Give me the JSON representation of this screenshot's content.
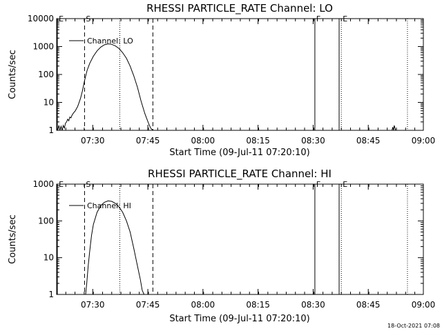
{
  "footer": {
    "date_stamp": "18-Oct-2021 07:08"
  },
  "chart_data": [
    {
      "type": "line",
      "title": "RHESSI PARTICLE_RATE Channel: LO",
      "xlabel": "Start Time (09-Jul-11 07:20:10)",
      "ylabel": "Counts/sec",
      "yscale": "log",
      "ylim": [
        1,
        10000
      ],
      "xlim_minutes": [
        0,
        99.83
      ],
      "x_ticks": [
        "07:30",
        "07:45",
        "08:00",
        "08:15",
        "08:30",
        "08:45",
        "09:00"
      ],
      "y_ticks": [
        "1",
        "10",
        "100",
        "1000",
        "10000"
      ],
      "legend": {
        "label": "Channel: LO",
        "placement": "top-left"
      },
      "markers": [
        {
          "label": "E",
          "minutes": 0.2,
          "style": "solid"
        },
        {
          "label": "S",
          "minutes": 7.6,
          "style": "dashed"
        },
        {
          "minutes": 17.2,
          "style": "dotted"
        },
        {
          "minutes": 26.2,
          "style": "dashed"
        },
        {
          "label": "F",
          "minutes": 70.3,
          "style": "solid"
        },
        {
          "minutes": 76.9,
          "style": "solid"
        },
        {
          "label": "E",
          "minutes": 77.5,
          "style": "dotted"
        },
        {
          "minutes": 95.5,
          "style": "dotted"
        }
      ],
      "series": [
        {
          "name": "Channel: LO",
          "x": [
            0.3,
            0.6,
            0.9,
            1.2,
            1.5,
            1.8,
            2.1,
            2.4,
            2.7,
            3.0,
            3.3,
            3.6,
            3.9,
            4.2,
            4.5,
            4.8,
            5.1,
            5.4,
            5.7,
            6.0,
            6.5,
            7.0,
            7.6,
            8.3,
            9.0,
            10,
            11,
            12,
            13,
            14,
            15,
            16,
            17,
            18,
            19,
            20,
            21,
            22,
            23,
            24,
            25,
            25.6,
            26.2
          ],
          "y": [
            1,
            1.5,
            1,
            1.4,
            1,
            1.5,
            1.2,
            1.8,
            2,
            2.5,
            2.2,
            3,
            2.8,
            3.5,
            4,
            4.5,
            5,
            6,
            7,
            9,
            14,
            25,
            60,
            140,
            250,
            450,
            700,
            950,
            1150,
            1250,
            1200,
            1050,
            850,
            600,
            380,
            200,
            90,
            35,
            11,
            4,
            1.8,
            1.2,
            1
          ]
        },
        {
          "x": [
            91.3,
            91.5,
            91.7,
            91.9,
            92.1,
            92.3
          ],
          "y": [
            1,
            1.3,
            1,
            1.5,
            1.2,
            1
          ]
        }
      ]
    },
    {
      "type": "line",
      "title": "RHESSI PARTICLE_RATE Channel: HI",
      "xlabel": "Start Time (09-Jul-11 07:20:10)",
      "ylabel": "Counts/sec",
      "yscale": "log",
      "ylim": [
        1,
        1000
      ],
      "xlim_minutes": [
        0,
        99.83
      ],
      "x_ticks": [
        "07:30",
        "07:45",
        "08:00",
        "08:15",
        "08:30",
        "08:45",
        "09:00"
      ],
      "y_ticks": [
        "1",
        "10",
        "100",
        "1000"
      ],
      "legend": {
        "label": "Channel: HI",
        "placement": "top-left"
      },
      "markers": [
        {
          "label": "E",
          "minutes": 0.2,
          "style": "solid"
        },
        {
          "label": "S",
          "minutes": 7.6,
          "style": "dashed"
        },
        {
          "minutes": 17.2,
          "style": "dotted"
        },
        {
          "minutes": 26.2,
          "style": "dashed"
        },
        {
          "label": "F",
          "minutes": 70.3,
          "style": "solid"
        },
        {
          "minutes": 76.9,
          "style": "solid"
        },
        {
          "label": "E",
          "minutes": 77.5,
          "style": "dotted"
        },
        {
          "minutes": 95.5,
          "style": "dotted"
        }
      ],
      "series": [
        {
          "name": "Channel: HI",
          "x": [
            7.9,
            8.2,
            8.6,
            9,
            9.5,
            10,
            11,
            12,
            13,
            14,
            15,
            16,
            17,
            18,
            19,
            20,
            21,
            22,
            22.8,
            23.3,
            23.8
          ],
          "y": [
            1,
            2,
            6,
            15,
            40,
            80,
            170,
            260,
            320,
            350,
            340,
            300,
            240,
            170,
            100,
            50,
            18,
            6,
            2.5,
            1.3,
            1
          ]
        }
      ]
    }
  ]
}
